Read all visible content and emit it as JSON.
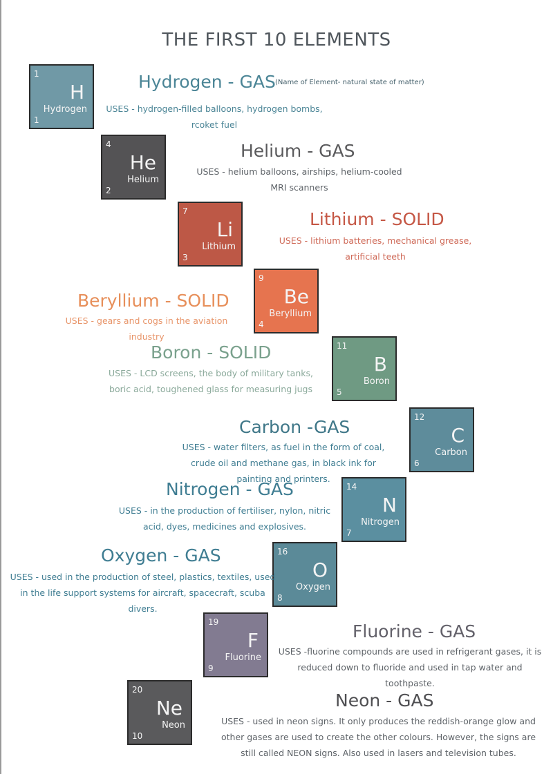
{
  "title": "THE FIRST 10 ELEMENTS",
  "note": "(Name of Element- natural state of matter)",
  "elements": [
    {
      "symbol": "H",
      "name": "Hydrogen",
      "top_num": "1",
      "bottom_num": "1",
      "heading": "Hydrogen - GAS",
      "uses": "USES - hydrogen-filled balloons, hydrogen bombs, rcoket fuel",
      "tile_color": "#7099a6",
      "heading_color": "#4b8596"
    },
    {
      "symbol": "He",
      "name": "Helium",
      "top_num": "4",
      "bottom_num": "2",
      "heading": "Helium - GAS",
      "uses": "USES - helium balloons, airships, helium-cooled MRI scanners",
      "tile_color": "#545355",
      "heading_color": "#5a5a5c"
    },
    {
      "symbol": "Li",
      "name": "Lithium",
      "top_num": "7",
      "bottom_num": "3",
      "heading": "Lithium - SOLID",
      "uses": "USES - lithium batteries, mechanical grease, artificial teeth",
      "tile_color": "#bd5846",
      "heading_color": "#c55745"
    },
    {
      "symbol": "Be",
      "name": "Beryllium",
      "top_num": "9",
      "bottom_num": "4",
      "heading": "Beryllium - SOLID",
      "uses": "USES - gears and cogs in the aviation industry",
      "tile_color": "#e6744f",
      "heading_color": "#e78f5a"
    },
    {
      "symbol": "B",
      "name": "Boron",
      "top_num": "11",
      "bottom_num": "5",
      "heading": "Boron - SOLID",
      "uses": "USES - LCD screens, the body of military tanks, boric acid, toughened glass for measuring jugs",
      "tile_color": "#6f9a83",
      "heading_color": "#7aa18d"
    },
    {
      "symbol": "C",
      "name": "Carbon",
      "top_num": "12",
      "bottom_num": "6",
      "heading": "Carbon -GAS",
      "uses": "USES - water filters, as fuel in the form of coal, crude oil and methane gas, in black ink for painting and printers.",
      "tile_color": "#5e8c9b",
      "heading_color": "#3f7788"
    },
    {
      "symbol": "N",
      "name": "Nitrogen",
      "top_num": "14",
      "bottom_num": "7",
      "heading": "Nitrogen - GAS",
      "uses": "USES - in the production of fertiliser, nylon, nitric acid, dyes, medicines and explosives.",
      "tile_color": "#5b8fa0",
      "heading_color": "#3f7d92"
    },
    {
      "symbol": "O",
      "name": "Oxygen",
      "top_num": "16",
      "bottom_num": "8",
      "heading": "Oxygen - GAS",
      "uses": "USES - used in the production of steel, plastics, textiles, used in the life support systems for aircraft, spacecraft, scuba divers.",
      "tile_color": "#5b8a98",
      "heading_color": "#3f7d92"
    },
    {
      "symbol": "F",
      "name": "Fluorine",
      "top_num": "19",
      "bottom_num": "9",
      "heading": "Fluorine - GAS",
      "uses": "USES -fluorine compounds are used in refrigerant gases, it is reduced down to fluoride and used in tap water and toothpaste.",
      "tile_color": "#827b91",
      "heading_color": "#63616a"
    },
    {
      "symbol": "Ne",
      "name": "Neon",
      "top_num": "20",
      "bottom_num": "10",
      "heading": "Neon - GAS",
      "uses": "USES - used in neon signs. It only produces the reddish-orange glow and other gases are used to create the other colours. However, the signs are still called NEON signs. Also used in lasers and television tubes.",
      "tile_color": "#5a5a5c",
      "heading_color": "#4f4f52"
    }
  ]
}
